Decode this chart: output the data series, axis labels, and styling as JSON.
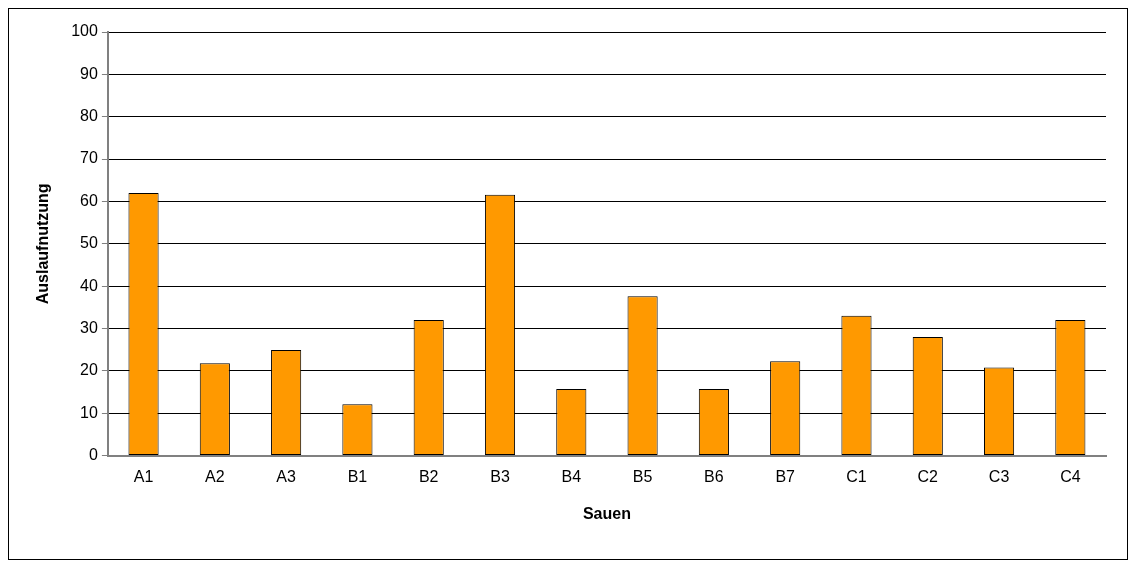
{
  "chart_data": {
    "type": "bar",
    "xlabel": "Sauen",
    "ylabel": "Auslaufnutzung",
    "categories": [
      "A1",
      "A2",
      "A3",
      "B1",
      "B2",
      "B3",
      "B4",
      "B5",
      "B6",
      "B7",
      "C1",
      "C2",
      "C3",
      "C4"
    ],
    "values": [
      62,
      21.8,
      24.9,
      12.1,
      32,
      61.6,
      15.7,
      37.6,
      15.7,
      22.3,
      33,
      28,
      20.8,
      32
    ],
    "color": "#ff9900",
    "ylim": [
      0,
      100
    ],
    "yticks": [
      0,
      10,
      20,
      30,
      40,
      50,
      60,
      70,
      80,
      90,
      100
    ],
    "grid": "y",
    "legend": false
  }
}
